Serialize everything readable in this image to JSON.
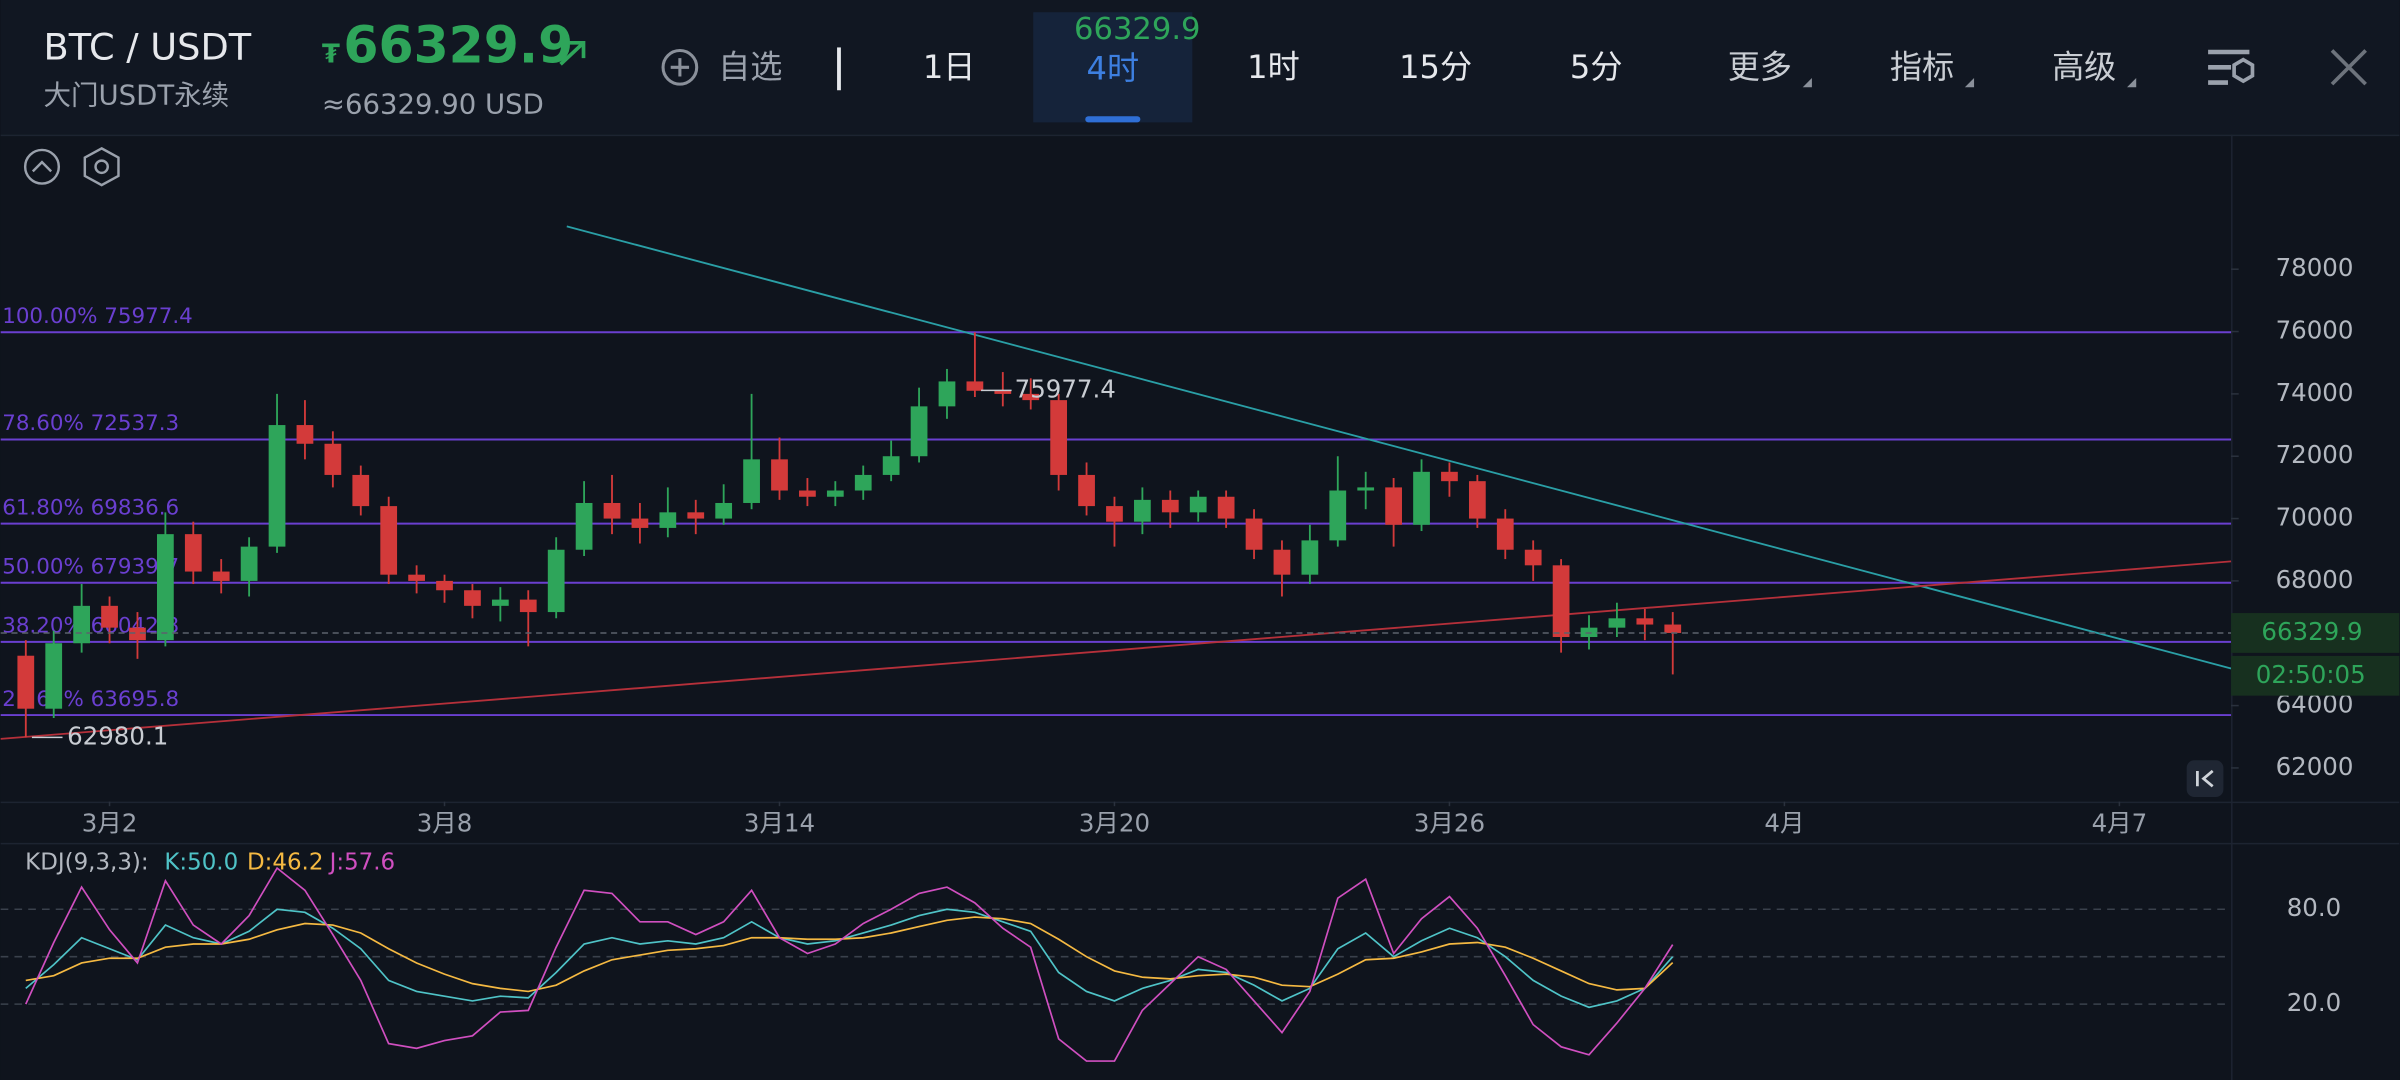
{
  "header": {
    "symbol": "BTC / USDT",
    "contract": "大门USDT永续",
    "currency_mark": "₮",
    "price": "66329.9",
    "price_usd": "≈66329.90 USD",
    "watchlist": "自选"
  },
  "tabs": [
    "1日",
    "4时",
    "1时",
    "15分",
    "5分"
  ],
  "active_tab_price": "66329.9",
  "menus": [
    "更多",
    "指标",
    "高级"
  ],
  "chart_data": [
    {
      "type": "candlestick",
      "x": [
        0.5,
        1,
        1.5,
        2,
        2.5,
        3,
        3.5,
        4,
        4.5,
        5,
        5.5,
        6,
        6.5,
        7,
        7.5,
        8,
        8.5,
        9,
        9.5,
        10,
        10.5,
        11,
        11.5,
        12,
        12.5,
        13,
        13.5,
        14,
        14.5,
        15,
        15.5,
        16,
        16.5,
        17,
        17.5,
        18,
        18.5,
        19,
        19.5,
        20,
        20.5,
        21,
        21.5,
        22,
        22.5,
        23,
        23.5,
        24,
        24.5,
        25,
        25.5,
        26,
        26.5,
        27,
        27.5,
        28,
        28.5,
        29,
        29.5,
        30
      ],
      "open": [
        65600,
        63900,
        66000,
        67200,
        66500,
        66100,
        69500,
        68300,
        68000,
        69100,
        73000,
        72400,
        71400,
        70400,
        68200,
        68000,
        67700,
        67200,
        67400,
        67000,
        69000,
        70500,
        70000,
        69700,
        70200,
        70000,
        70500,
        71900,
        70900,
        70700,
        70900,
        71400,
        72000,
        73600,
        74400,
        74100,
        74000,
        73800,
        71400,
        70400,
        69900,
        70600,
        70200,
        70700,
        70000,
        69000,
        68200,
        69300,
        70900,
        71000,
        69800,
        71500,
        71200,
        70000,
        69000,
        68500,
        66200,
        66500,
        66800,
        66600
      ],
      "high": [
        66100,
        66400,
        67900,
        67500,
        67000,
        70200,
        69900,
        68700,
        69400,
        74000,
        73800,
        72800,
        71700,
        70700,
        68500,
        68200,
        67900,
        67800,
        67700,
        69400,
        71200,
        71400,
        70500,
        71000,
        70600,
        71100,
        74000,
        72600,
        71300,
        71200,
        71700,
        72500,
        74200,
        74800,
        75977.4,
        74700,
        74500,
        74000,
        71800,
        70700,
        71000,
        70900,
        70900,
        70900,
        70300,
        69300,
        69800,
        72000,
        71500,
        71300,
        71900,
        71800,
        71400,
        70300,
        69300,
        68700,
        66900,
        67300,
        67100,
        67000
      ],
      "low": [
        62980.1,
        63600,
        65700,
        66000,
        65500,
        65900,
        67900,
        67600,
        67500,
        68900,
        71900,
        71000,
        70100,
        67900,
        67600,
        67300,
        66800,
        66700,
        65900,
        66800,
        68800,
        69500,
        69200,
        69400,
        69500,
        69800,
        70300,
        70600,
        70400,
        70400,
        70600,
        71200,
        71800,
        73200,
        73900,
        73600,
        73500,
        70900,
        70100,
        69100,
        69500,
        69700,
        69900,
        69700,
        68700,
        67500,
        67900,
        69100,
        70300,
        69100,
        69600,
        70700,
        69700,
        68700,
        68000,
        65700,
        65800,
        66200,
        66100,
        65000
      ],
      "close": [
        63900,
        66000,
        67200,
        66500,
        66100,
        69500,
        68300,
        68000,
        69100,
        73000,
        72400,
        71400,
        70400,
        68200,
        68000,
        67700,
        67200,
        67400,
        67000,
        69000,
        70500,
        70000,
        69700,
        70200,
        70000,
        70500,
        71900,
        70900,
        70700,
        70900,
        71400,
        72000,
        73600,
        74400,
        74100,
        74000,
        73800,
        71400,
        70400,
        69900,
        70600,
        70200,
        70700,
        70000,
        69000,
        68200,
        69300,
        70900,
        71000,
        69800,
        71500,
        71200,
        70000,
        69000,
        68500,
        66200,
        66500,
        66800,
        66600,
        66329.9
      ],
      "up_color": "#2ea55a",
      "down_color": "#d33a3a",
      "xlim": [
        0.05,
        40
      ],
      "ylim": [
        60920,
        82220
      ],
      "yticks": [
        62000,
        64000,
        66000,
        68000,
        70000,
        72000,
        74000,
        76000,
        78000
      ],
      "xticks": [
        {
          "value": 2,
          "label": "3月2"
        },
        {
          "value": 8,
          "label": "3月8"
        },
        {
          "value": 14,
          "label": "3月14"
        },
        {
          "value": 20,
          "label": "3月20"
        },
        {
          "value": 26,
          "label": "3月26"
        },
        {
          "value": 32,
          "label": "4月"
        },
        {
          "value": 38,
          "label": "4月7"
        }
      ],
      "fib_color": "#6a3fd0",
      "fib_levels": [
        {
          "label": "100.00% 75977.4",
          "value": 75977.4
        },
        {
          "label": "78.60% 72537.3",
          "value": 72537.3
        },
        {
          "label": "61.80% 69836.6",
          "value": 69836.6
        },
        {
          "label": "50.00% 67939.7",
          "value": 67939.7
        },
        {
          "label": "38.20% 66042.8",
          "value": 66042.8
        },
        {
          "label": "23.60% 63695.8",
          "value": 63695.8
        }
      ],
      "trendlines": [
        {
          "color": "#2a9fa6",
          "points": [
            [
              10.19,
              79374
            ],
            [
              40,
              65190
            ]
          ]
        },
        {
          "color": "#b5303a",
          "points": [
            [
              0.05,
              62932
            ],
            [
              40,
              68626
            ]
          ]
        }
      ],
      "high_marker": {
        "x": 17.5,
        "value": 75977.4
      },
      "low_marker": {
        "x": 0.5,
        "value": 62980.1
      },
      "last_price": 66329.9,
      "countdown": "02:50:05"
    },
    {
      "type": "line",
      "title": "KDJ(9,3,3):",
      "x": [
        0.5,
        1,
        1.5,
        2,
        2.5,
        3,
        3.5,
        4,
        4.5,
        5,
        5.5,
        6,
        6.5,
        7,
        7.5,
        8,
        8.5,
        9,
        9.5,
        10,
        10.5,
        11,
        11.5,
        12,
        12.5,
        13,
        13.5,
        14,
        14.5,
        15,
        15.5,
        16,
        16.5,
        17,
        17.5,
        18,
        18.5,
        19,
        19.5,
        20,
        20.5,
        21,
        21.5,
        22,
        22.5,
        23,
        23.5,
        24,
        24.5,
        25,
        25.5,
        26,
        26.5,
        27,
        27.5,
        28,
        28.5,
        29,
        29.5,
        30
      ],
      "xlim": [
        0.05,
        40
      ],
      "ylim": [
        -28,
        121
      ],
      "yticks": [
        {
          "value": 20,
          "label": "20.0"
        },
        {
          "value": 80,
          "label": "80.0"
        }
      ],
      "midline": 50,
      "series": [
        {
          "name": "K",
          "legend_label": "K:50.0",
          "color": "#4fc3c7",
          "values": [
            30,
            45,
            62,
            55,
            48,
            70,
            62,
            58,
            66,
            80,
            78,
            68,
            55,
            35,
            28,
            25,
            22,
            25,
            24,
            40,
            58,
            62,
            58,
            60,
            58,
            62,
            72,
            62,
            58,
            60,
            65,
            70,
            76,
            80,
            78,
            72,
            66,
            40,
            28,
            22,
            30,
            35,
            42,
            40,
            32,
            22,
            30,
            55,
            65,
            50,
            60,
            68,
            62,
            50,
            35,
            25,
            18,
            22,
            30,
            50
          ]
        },
        {
          "name": "D",
          "legend_label": "D:46.2",
          "color": "#f5b942",
          "values": [
            35,
            38,
            46,
            49,
            49,
            56,
            58,
            58,
            61,
            67,
            71,
            70,
            65,
            55,
            46,
            39,
            33,
            30,
            28,
            32,
            41,
            48,
            51,
            54,
            55,
            57,
            62,
            62,
            61,
            61,
            62,
            65,
            69,
            73,
            75,
            74,
            71,
            61,
            50,
            41,
            37,
            36,
            38,
            39,
            37,
            32,
            31,
            39,
            48,
            49,
            53,
            58,
            59,
            56,
            49,
            41,
            33,
            29,
            30,
            46.2
          ]
        },
        {
          "name": "J",
          "legend_label": "J:57.6",
          "color": "#d04fc0",
          "values": [
            20,
            59,
            94,
            67,
            46,
            98,
            70,
            58,
            76,
            106,
            92,
            64,
            35,
            -5,
            -8,
            -3,
            0,
            15,
            16,
            56,
            92,
            90,
            72,
            72,
            64,
            72,
            92,
            62,
            52,
            58,
            71,
            80,
            90,
            94,
            84,
            68,
            56,
            -2,
            -16,
            -16,
            16,
            33,
            50,
            42,
            22,
            2,
            28,
            87,
            99,
            52,
            74,
            88,
            68,
            38,
            7,
            -7,
            -12,
            8,
            30,
            57.6
          ]
        }
      ]
    }
  ]
}
